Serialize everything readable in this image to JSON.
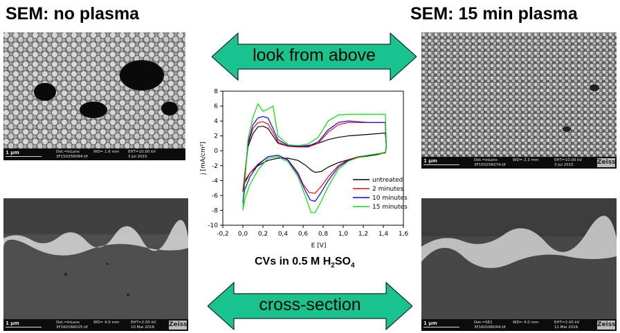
{
  "titles": {
    "left": "SEM: no plasma",
    "right": "SEM: 15 min plasma"
  },
  "arrows": {
    "top_label": "look from above",
    "bottom_label": "cross-section",
    "fill_color": "#19c38d"
  },
  "sem_images": [
    {
      "id": "top-left",
      "scale": "1 µm",
      "det": "Det.=InLens",
      "wd": "WD= 1.6 mm",
      "eht": "EHT=10.00 kV",
      "file": "3F15025R084.tif",
      "date": "3 Jul 2015"
    },
    {
      "id": "top-right",
      "scale": "1 µm",
      "det": "Det.=InLens",
      "wd": "WD= 2.3 mm",
      "eht": "EHT=10.00 kV",
      "file": "3F15025R074.tif",
      "date": "3 Jul 2015"
    },
    {
      "id": "bottom-left",
      "scale": "1 µm",
      "det": "Det.=InLens",
      "wd": "WD= 4.0 mm",
      "eht": "EHT=2.00 kV",
      "file": "3F16016R025.tif",
      "date": "10 Mai 2016"
    },
    {
      "id": "bottom-right",
      "scale": "1 µm",
      "det": "Det.=SE2",
      "wd": "WD= 4.0 mm",
      "eht": "EHT=2.00 kV",
      "file": "3F16016R044.tif",
      "date": "11 Mai 2016"
    }
  ],
  "caption": {
    "prefix": "CVs in 0.5 M H",
    "sub1": "2",
    "mid": "SO",
    "sub2": "4"
  },
  "chart_data": {
    "type": "line",
    "xlabel": "E [V]",
    "ylabel": "j [mA/cm²]",
    "xlim": [
      -0.2,
      1.6
    ],
    "ylim": [
      -10,
      8
    ],
    "xticks": [
      -0.2,
      0.0,
      0.2,
      0.4,
      0.6,
      0.8,
      1.0,
      1.2,
      1.4,
      1.6
    ],
    "xtick_labels": [
      "-0,2",
      "0,0",
      "0,2",
      "0,4",
      "0,6",
      "0,8",
      "1,0",
      "1,2",
      "1,4",
      "1,6"
    ],
    "yticks": [
      -10,
      -8,
      -6,
      -4,
      -2,
      0,
      2,
      4,
      6,
      8
    ],
    "legend_position": "lower-right",
    "grid": false,
    "series": [
      {
        "name": "untreated",
        "color": "#000000",
        "x": [
          0.0,
          0.05,
          0.1,
          0.15,
          0.2,
          0.25,
          0.3,
          0.35,
          0.45,
          0.55,
          0.65,
          0.75,
          0.85,
          0.95,
          1.05,
          1.15,
          1.25,
          1.35,
          1.42,
          1.43,
          1.42,
          1.35,
          1.25,
          1.15,
          1.05,
          0.95,
          0.85,
          0.78,
          0.72,
          0.68,
          0.63,
          0.55,
          0.45,
          0.35,
          0.25,
          0.15,
          0.07,
          0.02,
          0.0
        ],
        "y": [
          -5.5,
          0.5,
          2.3,
          3.2,
          3.3,
          3.0,
          2.0,
          1.0,
          0.6,
          0.6,
          0.7,
          1.0,
          1.5,
          1.8,
          2.0,
          2.1,
          2.2,
          2.3,
          2.4,
          0.5,
          -0.2,
          -0.5,
          -0.7,
          -0.9,
          -1.2,
          -1.6,
          -2.2,
          -2.8,
          -2.9,
          -2.6,
          -2.0,
          -1.3,
          -1.0,
          -1.0,
          -1.3,
          -2.0,
          -3.0,
          -4.3,
          -5.5
        ]
      },
      {
        "name": "2 minutes",
        "color": "#ff0000",
        "x": [
          0.0,
          0.05,
          0.1,
          0.15,
          0.2,
          0.25,
          0.3,
          0.35,
          0.45,
          0.55,
          0.65,
          0.75,
          0.85,
          0.95,
          1.05,
          1.15,
          1.25,
          1.35,
          1.42,
          1.43,
          1.42,
          1.35,
          1.25,
          1.15,
          1.05,
          0.95,
          0.85,
          0.78,
          0.72,
          0.66,
          0.6,
          0.55,
          0.45,
          0.35,
          0.25,
          0.15,
          0.07,
          0.02,
          0.0
        ],
        "y": [
          -5.5,
          0.8,
          3.0,
          3.8,
          3.9,
          3.6,
          2.5,
          1.2,
          0.6,
          0.5,
          0.5,
          1.0,
          2.5,
          3.5,
          3.8,
          3.8,
          3.8,
          3.8,
          3.8,
          0.5,
          -0.3,
          -0.4,
          -0.6,
          -0.8,
          -1.2,
          -2.0,
          -3.5,
          -4.8,
          -5.7,
          -5.6,
          -4.5,
          -3.0,
          -1.2,
          -0.6,
          -0.8,
          -1.8,
          -3.0,
          -4.0,
          -5.5
        ]
      },
      {
        "name": "10 minutes",
        "color": "#0000ff",
        "x": [
          0.0,
          0.05,
          0.1,
          0.15,
          0.2,
          0.25,
          0.3,
          0.35,
          0.45,
          0.55,
          0.65,
          0.75,
          0.85,
          0.95,
          1.05,
          1.15,
          1.25,
          1.35,
          1.42,
          1.43,
          1.42,
          1.35,
          1.25,
          1.15,
          1.05,
          0.95,
          0.85,
          0.78,
          0.72,
          0.67,
          0.61,
          0.55,
          0.45,
          0.35,
          0.25,
          0.15,
          0.07,
          0.02,
          0.0
        ],
        "y": [
          -7.0,
          1.0,
          3.5,
          4.4,
          4.6,
          4.4,
          3.0,
          1.5,
          0.7,
          0.6,
          0.6,
          1.2,
          2.8,
          3.8,
          4.0,
          3.9,
          3.8,
          3.8,
          3.8,
          0.6,
          -0.2,
          -0.4,
          -0.6,
          -0.9,
          -1.3,
          -2.2,
          -4.0,
          -5.6,
          -6.8,
          -6.6,
          -5.0,
          -3.2,
          -1.3,
          -0.6,
          -0.8,
          -1.9,
          -3.5,
          -5.2,
          -7.0
        ]
      },
      {
        "name": "15 minutes",
        "color": "#00e000",
        "x": [
          0.0,
          0.05,
          0.1,
          0.15,
          0.2,
          0.25,
          0.3,
          0.35,
          0.45,
          0.55,
          0.65,
          0.75,
          0.85,
          0.95,
          1.05,
          1.15,
          1.25,
          1.35,
          1.42,
          1.43,
          1.42,
          1.35,
          1.25,
          1.15,
          1.05,
          0.95,
          0.85,
          0.78,
          0.72,
          0.68,
          0.62,
          0.55,
          0.45,
          0.35,
          0.25,
          0.15,
          0.07,
          0.02,
          0.0
        ],
        "y": [
          -8.0,
          1.5,
          4.5,
          6.3,
          5.3,
          5.6,
          6.0,
          2.0,
          0.8,
          0.7,
          0.9,
          1.8,
          4.0,
          4.8,
          4.9,
          4.9,
          4.9,
          4.9,
          4.9,
          0.8,
          -0.2,
          -0.4,
          -0.6,
          -0.9,
          -1.4,
          -2.5,
          -4.8,
          -6.8,
          -8.3,
          -8.3,
          -6.0,
          -3.5,
          -1.5,
          -0.8,
          -1.0,
          -2.6,
          -4.5,
          -6.5,
          -8.0
        ]
      }
    ]
  }
}
